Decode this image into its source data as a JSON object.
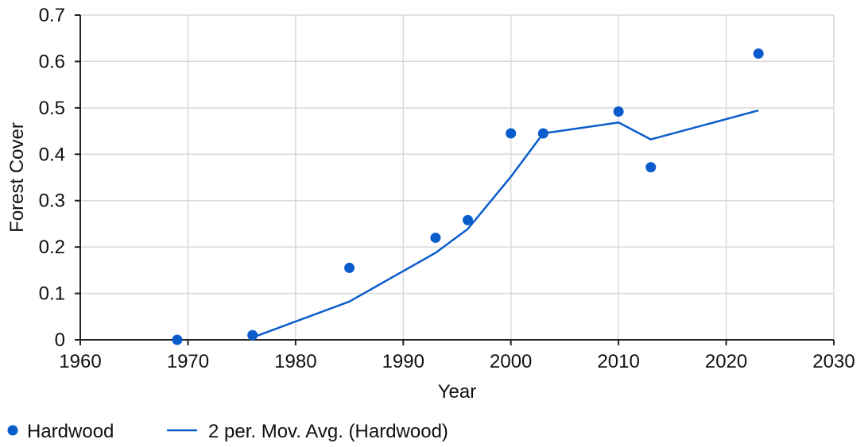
{
  "chart_data": {
    "type": "scatter",
    "title": "",
    "xlabel": "Year",
    "ylabel": "Forest Cover",
    "xlim": [
      1960,
      2030
    ],
    "ylim": [
      0,
      0.7
    ],
    "x_ticks": [
      "1960",
      "1970",
      "1980",
      "1990",
      "2000",
      "2010",
      "2020",
      "2030"
    ],
    "y_ticks": [
      "0",
      "0.1",
      "0.2",
      "0.3",
      "0.4",
      "0.5",
      "0.6",
      "0.7"
    ],
    "grid": true,
    "legend_position": "bottom-left",
    "series": [
      {
        "name": "Hardwood",
        "kind": "scatter",
        "color": "#0a5ccc",
        "x": [
          1969,
          1976,
          1985,
          1993,
          1996,
          2000,
          2003,
          2010,
          2013,
          2023
        ],
        "y": [
          0.0,
          0.01,
          0.155,
          0.22,
          0.258,
          0.445,
          0.445,
          0.492,
          0.372,
          0.617
        ]
      },
      {
        "name": "2 per. Mov. Avg. (Hardwood)",
        "kind": "line",
        "color": "#0a5ccc",
        "x": [
          1976,
          1985,
          1993,
          1996,
          2000,
          2003,
          2010,
          2013,
          2023
        ],
        "y": [
          0.005,
          0.0825,
          0.1875,
          0.239,
          0.3515,
          0.445,
          0.4685,
          0.432,
          0.4945
        ]
      }
    ]
  }
}
